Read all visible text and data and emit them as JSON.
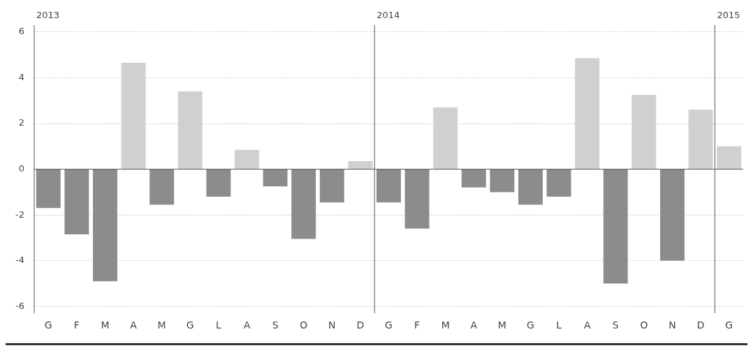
{
  "chart_data": {
    "type": "bar",
    "categories": [
      "G",
      "F",
      "M",
      "A",
      "M",
      "G",
      "L",
      "A",
      "S",
      "O",
      "N",
      "D",
      "G",
      "F",
      "M",
      "A",
      "M",
      "G",
      "L",
      "A",
      "S",
      "O",
      "N",
      "D",
      "G"
    ],
    "values": [
      -1.7,
      -2.85,
      -4.9,
      4.65,
      -1.55,
      3.4,
      -1.2,
      0.85,
      -0.75,
      -3.05,
      -1.45,
      0.35,
      -1.45,
      -2.6,
      2.7,
      -0.8,
      -1.0,
      -1.55,
      -1.2,
      4.85,
      -5.0,
      3.25,
      -4.0,
      2.6,
      1.0
    ],
    "colors": [
      "#8c8c8c",
      "#8c8c8c",
      "#8c8c8c",
      "#d0d0d0",
      "#8c8c8c",
      "#d0d0d0",
      "#8c8c8c",
      "#d0d0d0",
      "#8c8c8c",
      "#8c8c8c",
      "#8c8c8c",
      "#d0d0d0",
      "#8c8c8c",
      "#8c8c8c",
      "#d0d0d0",
      "#8c8c8c",
      "#8c8c8c",
      "#8c8c8c",
      "#8c8c8c",
      "#d0d0d0",
      "#8c8c8c",
      "#d0d0d0",
      "#8c8c8c",
      "#d0d0d0",
      "#d0d0d0"
    ],
    "ylim": [
      -6.3,
      6.3
    ],
    "yticks": [
      -6,
      -4,
      -2,
      0,
      2,
      4,
      6
    ],
    "grid": "y",
    "legend": false,
    "annotations": [
      "2013",
      "2014",
      "2015"
    ]
  }
}
